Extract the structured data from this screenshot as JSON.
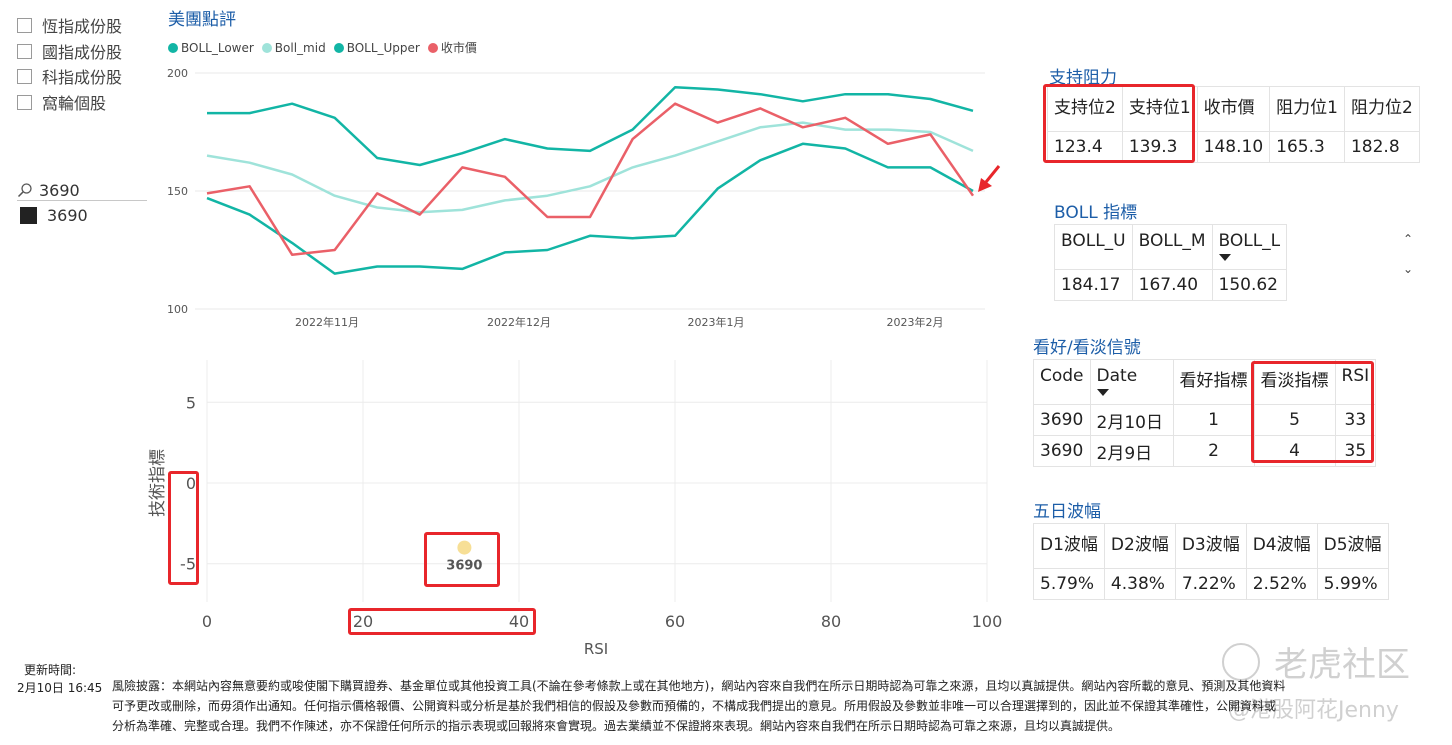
{
  "slicer": {
    "items": [
      "恆指成份股",
      "國指成份股",
      "科指成份股",
      "窩輪個股"
    ],
    "search_value": "3690",
    "selected_value": "3690"
  },
  "line_chart": {
    "title": "美團點評",
    "legend": [
      {
        "name": "BOLL_Lower",
        "color": "#12b5a5"
      },
      {
        "name": "Boll_mid",
        "color": "#9fe3da"
      },
      {
        "name": "BOLL_Upper",
        "color": "#12b5a5"
      },
      {
        "name": "收市價",
        "color": "#ea6068"
      }
    ],
    "y_ticks": [
      "200",
      "150",
      "100"
    ],
    "x_ticks": [
      "2022年11月",
      "2022年12月",
      "2023年1月",
      "2023年2月"
    ]
  },
  "chart_data": [
    {
      "type": "line",
      "title": "美團點評",
      "x": [
        "2022-10-12",
        "2022-10-19",
        "2022-10-26",
        "2022-11-02",
        "2022-11-09",
        "2022-11-16",
        "2022-11-23",
        "2022-11-30",
        "2022-12-07",
        "2022-12-14",
        "2022-12-21",
        "2022-12-28",
        "2023-01-04",
        "2023-01-11",
        "2023-01-18",
        "2023-01-25",
        "2023-02-01",
        "2023-02-08",
        "2023-02-10"
      ],
      "series": [
        {
          "name": "BOLL_Upper",
          "values": [
            183,
            183,
            187,
            181,
            164,
            161,
            166,
            172,
            168,
            167,
            176,
            194,
            193,
            191,
            188,
            191,
            191,
            189,
            184
          ]
        },
        {
          "name": "Boll_mid",
          "values": [
            165,
            162,
            157,
            148,
            143,
            141,
            142,
            146,
            148,
            152,
            160,
            165,
            171,
            177,
            179,
            176,
            176,
            175,
            167
          ]
        },
        {
          "name": "BOLL_Lower",
          "values": [
            147,
            140,
            128,
            115,
            118,
            118,
            117,
            124,
            125,
            131,
            130,
            131,
            151,
            163,
            170,
            168,
            160,
            160,
            150
          ]
        },
        {
          "name": "收市價",
          "values": [
            149,
            152,
            123,
            125,
            149,
            140,
            160,
            156,
            139,
            139,
            172,
            187,
            179,
            185,
            177,
            181,
            170,
            174,
            148
          ]
        }
      ],
      "ylim": [
        100,
        200
      ]
    },
    {
      "type": "scatter",
      "xlabel": "RSI",
      "ylabel": "技術指標",
      "x_ticks": [
        "0",
        "20",
        "40",
        "60",
        "80",
        "100"
      ],
      "y_ticks": [
        "5",
        "0",
        "-5"
      ],
      "xlim": [
        0,
        100
      ],
      "ylim": [
        -7,
        7
      ],
      "points": [
        {
          "label": "3690",
          "x": 33,
          "y": -4
        }
      ]
    }
  ],
  "support_table": {
    "title": "支持阻力",
    "headers": [
      "支持位2",
      "支持位1",
      "收市價",
      "阻力位1",
      "阻力位2"
    ],
    "values": [
      "123.4",
      "139.3",
      "148.10",
      "165.3",
      "182.8"
    ]
  },
  "boll_table": {
    "title": "BOLL 指標",
    "headers": [
      "BOLL_U",
      "BOLL_M",
      "BOLL_L"
    ],
    "values": [
      "184.17",
      "167.40",
      "150.62"
    ]
  },
  "signal_table": {
    "title": "看好/看淡信號",
    "headers": [
      "Code",
      "Date",
      "看好指標",
      "看淡指標",
      "RSI"
    ],
    "rows": [
      [
        "3690",
        "2月10日",
        "1",
        "5",
        "33"
      ],
      [
        "3690",
        "2月9日",
        "2",
        "4",
        "35"
      ]
    ]
  },
  "volatility_table": {
    "title": "五日波幅",
    "headers": [
      "D1波幅",
      "D2波幅",
      "D3波幅",
      "D4波幅",
      "D5波幅"
    ],
    "values": [
      "5.79%",
      "4.38%",
      "7.22%",
      "2.52%",
      "5.99%"
    ]
  },
  "footer": {
    "update_label": "更新時間:",
    "update_time": "2月10日 16:45",
    "disclaimer_1": "風險披露：本網站內容無意要約或唆使閣下購買證券、基金單位或其他投資工具(不論在參考條款上或在其他地方)，網站內容來自我們在所示日期時認為可靠之來源，且均以真誠提供。網站內容所載的意見、預測及其他資料",
    "disclaimer_2": "可予更改或刪除，而毋須作出通知。任何指示價格報價、公開資料或分析是基於我們相信的假設及參數而預備的，不構成我們提出的意見。所用假設及參數並非唯一可以合理選擇到的，因此並不保證其準確性，公開資料或",
    "disclaimer_3": "分析為準確、完整或合理。我們不作陳述，亦不保證任何所示的指示表現或回報將來會實現。過去業績並不保證將來表現。網站內容來自我們在所示日期時認為可靠之來源，且均以真誠提供。"
  },
  "watermark": {
    "brand": "老虎社区",
    "handle": "@港股阿花Jenny"
  }
}
